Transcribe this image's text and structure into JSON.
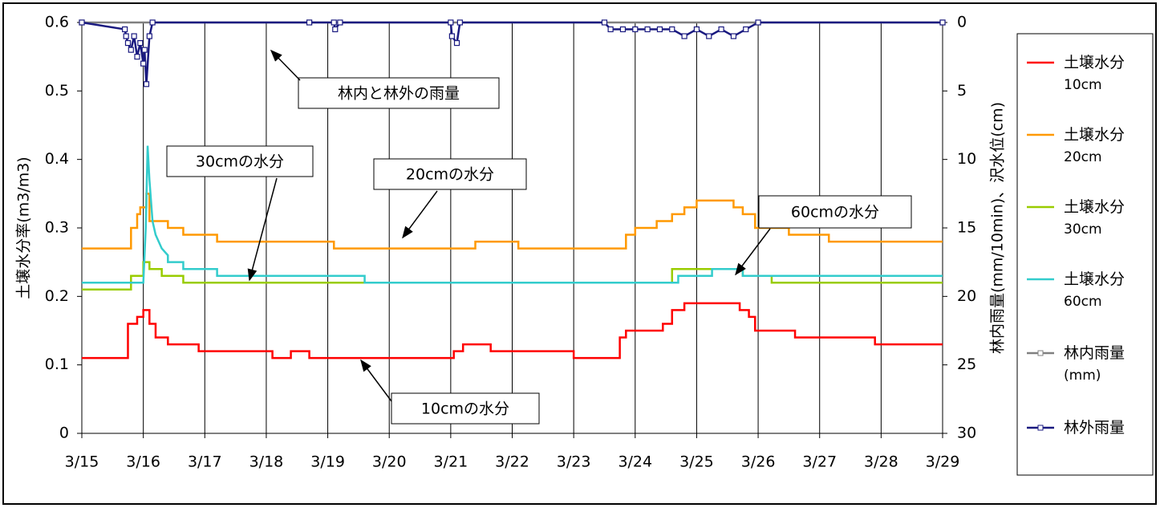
{
  "chart_data": {
    "type": "line",
    "ylabel": "土壌水分率(m3/m3)",
    "y2label": "林内雨量(mm/10min)、沢水位(cm)",
    "xlim": [
      0,
      14
    ],
    "xticks": [
      {
        "value": 0,
        "label": "3/15"
      },
      {
        "value": 1,
        "label": "3/16"
      },
      {
        "value": 2,
        "label": "3/17"
      },
      {
        "value": 3,
        "label": "3/18"
      },
      {
        "value": 4,
        "label": "3/19"
      },
      {
        "value": 5,
        "label": "3/20"
      },
      {
        "value": 6,
        "label": "3/21"
      },
      {
        "value": 7,
        "label": "3/22"
      },
      {
        "value": 8,
        "label": "3/23"
      },
      {
        "value": 9,
        "label": "3/24"
      },
      {
        "value": 10,
        "label": "3/25"
      },
      {
        "value": 11,
        "label": "3/26"
      },
      {
        "value": 12,
        "label": "3/27"
      },
      {
        "value": 13,
        "label": "3/28"
      },
      {
        "value": 14,
        "label": "3/29"
      }
    ],
    "ylim": [
      0,
      0.6
    ],
    "yticks": [
      0,
      0.1,
      0.2,
      0.3,
      0.4,
      0.5,
      0.6
    ],
    "y2lim": [
      30,
      0
    ],
    "y2ticks": [
      0,
      5,
      10,
      15,
      20,
      25,
      30
    ],
    "grid": "x",
    "series": [
      {
        "name": "土壌水分\n10cm",
        "color": "#ff0000",
        "x": [
          0,
          0.75,
          0.75,
          0.9,
          0.9,
          1.0,
          1.0,
          1.1,
          1.1,
          1.2,
          1.2,
          1.4,
          1.4,
          1.9,
          1.9,
          3.1,
          3.1,
          3.4,
          3.4,
          3.7,
          3.7,
          6.05,
          6.05,
          6.2,
          6.2,
          6.65,
          6.65,
          8.0,
          8.0,
          8.75,
          8.75,
          8.85,
          8.85,
          9.45,
          9.45,
          9.6,
          9.6,
          9.8,
          9.8,
          10.7,
          10.7,
          10.85,
          10.85,
          10.95,
          10.95,
          11.6,
          11.6,
          12.9,
          12.9,
          14
        ],
        "values": [
          0.11,
          0.11,
          0.16,
          0.16,
          0.17,
          0.17,
          0.18,
          0.18,
          0.16,
          0.16,
          0.14,
          0.14,
          0.13,
          0.13,
          0.12,
          0.12,
          0.11,
          0.11,
          0.12,
          0.12,
          0.11,
          0.11,
          0.12,
          0.12,
          0.13,
          0.13,
          0.12,
          0.12,
          0.11,
          0.11,
          0.14,
          0.14,
          0.15,
          0.15,
          0.16,
          0.16,
          0.18,
          0.18,
          0.19,
          0.19,
          0.18,
          0.18,
          0.17,
          0.17,
          0.15,
          0.15,
          0.14,
          0.14,
          0.13,
          0.13
        ]
      },
      {
        "name": "土壌水分\n20cm",
        "color": "#ff9900",
        "x": [
          0,
          0.8,
          0.8,
          0.9,
          0.9,
          0.95,
          0.95,
          1.05,
          1.05,
          1.1,
          1.1,
          1.4,
          1.4,
          1.65,
          1.65,
          2.2,
          2.2,
          4.1,
          4.1,
          6.4,
          6.4,
          7.1,
          7.1,
          8.85,
          8.85,
          9.0,
          9.0,
          9.35,
          9.35,
          9.6,
          9.6,
          9.8,
          9.8,
          10.0,
          10.0,
          10.6,
          10.6,
          10.75,
          10.75,
          10.95,
          10.95,
          11.5,
          11.5,
          12.15,
          12.15,
          14
        ],
        "values": [
          0.27,
          0.27,
          0.3,
          0.3,
          0.32,
          0.32,
          0.33,
          0.33,
          0.35,
          0.35,
          0.31,
          0.31,
          0.3,
          0.3,
          0.29,
          0.29,
          0.28,
          0.28,
          0.27,
          0.27,
          0.28,
          0.28,
          0.27,
          0.27,
          0.29,
          0.29,
          0.3,
          0.3,
          0.31,
          0.31,
          0.32,
          0.32,
          0.33,
          0.33,
          0.34,
          0.34,
          0.33,
          0.33,
          0.32,
          0.32,
          0.3,
          0.3,
          0.29,
          0.29,
          0.28,
          0.28
        ]
      },
      {
        "name": "土壌水分\n30cm",
        "color": "#99cc00",
        "x": [
          0,
          0.8,
          0.8,
          1.0,
          1.0,
          1.1,
          1.1,
          1.3,
          1.3,
          1.65,
          1.65,
          9.6,
          9.6,
          10.75,
          10.75,
          11.22,
          11.22,
          14
        ],
        "values": [
          0.21,
          0.21,
          0.23,
          0.23,
          0.25,
          0.25,
          0.24,
          0.24,
          0.23,
          0.23,
          0.22,
          0.22,
          0.24,
          0.24,
          0.23,
          0.23,
          0.22,
          0.22
        ]
      },
      {
        "name": "土壌水分\n60cm",
        "color": "#33cccc",
        "x": [
          0,
          1.0,
          1.04,
          1.07,
          1.1,
          1.15,
          1.2,
          1.3,
          1.4,
          1.4,
          1.65,
          1.65,
          2.2,
          2.2,
          4.6,
          4.6,
          9.7,
          9.7,
          10.25,
          10.25,
          10.75,
          10.75,
          14
        ],
        "values": [
          0.22,
          0.22,
          0.3,
          0.42,
          0.37,
          0.31,
          0.29,
          0.27,
          0.26,
          0.25,
          0.25,
          0.24,
          0.24,
          0.23,
          0.23,
          0.22,
          0.22,
          0.23,
          0.23,
          0.24,
          0.24,
          0.23,
          0.23
        ]
      },
      {
        "name": "林内雨量\n(mm)",
        "color": "#808080",
        "axis": "y2",
        "marker": "square",
        "x": [
          0,
          3.7,
          14
        ],
        "values": [
          0,
          0,
          0
        ]
      },
      {
        "name": "林外雨量",
        "color": "#1a1a80",
        "axis": "y2",
        "marker": "square",
        "x": [
          0,
          0.7,
          0.72,
          0.75,
          0.8,
          0.85,
          0.9,
          0.95,
          1.0,
          1.02,
          1.05,
          1.1,
          1.15,
          3.7,
          4.1,
          4.12,
          4.2,
          6.0,
          6.02,
          6.1,
          6.15,
          8.5,
          8.6,
          8.8,
          9.0,
          9.2,
          9.4,
          9.6,
          9.8,
          10.0,
          10.2,
          10.4,
          10.6,
          10.8,
          11.0,
          14
        ],
        "values": [
          0,
          0.5,
          1,
          1.5,
          2,
          1,
          2.5,
          1.5,
          3,
          2,
          4.5,
          1,
          0,
          0,
          0,
          0.5,
          0,
          0,
          1,
          1.5,
          0,
          0,
          0.5,
          0.5,
          0.5,
          0.5,
          0.5,
          0.5,
          1,
          0.5,
          1,
          0.5,
          1,
          0.5,
          0,
          0
        ]
      }
    ],
    "annotations": [
      "林内と林外の雨量",
      "30cmの水分",
      "20cmの水分",
      "60cmの水分",
      "10cmの水分"
    ]
  }
}
